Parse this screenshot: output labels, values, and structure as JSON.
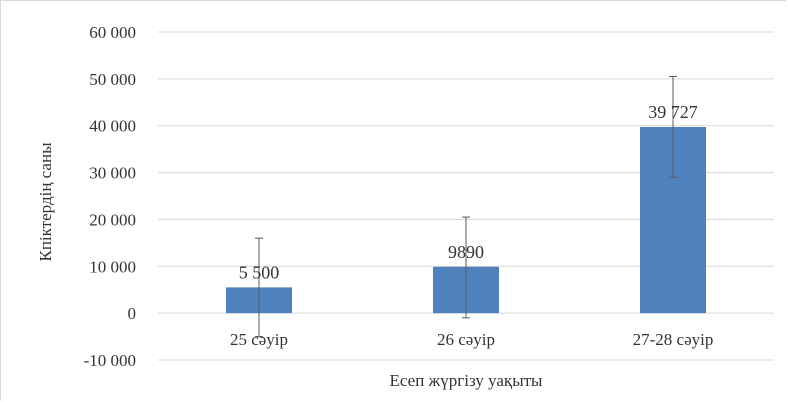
{
  "chart_data": {
    "type": "bar",
    "categories": [
      "25 сәуір",
      "26 сәуір",
      "27-28 сәуір"
    ],
    "values": [
      5500,
      9890,
      39727
    ],
    "value_labels": [
      "5 500",
      "9890",
      "39 727"
    ],
    "error_bars": [
      {
        "low": -5000,
        "high": 16000
      },
      {
        "low": -1000,
        "high": 20500
      },
      {
        "low": 29000,
        "high": 50500
      }
    ],
    "yticks": [
      -10000,
      0,
      10000,
      20000,
      30000,
      40000,
      50000,
      60000
    ],
    "ytick_labels": [
      "-10 000",
      "0",
      "10 000",
      "20 000",
      "30 000",
      "40 000",
      "50 000",
      "60 000"
    ],
    "ylim": [
      -10000,
      60000
    ],
    "xlabel": "Есеп жүргізу уақыты",
    "ylabel": "Кпіктердің саны",
    "grid": true,
    "legend": "none",
    "colors": {
      "bar": "#4f81bd",
      "grid": "#d9d9d9",
      "error": "#595959",
      "text": "#333333"
    }
  }
}
